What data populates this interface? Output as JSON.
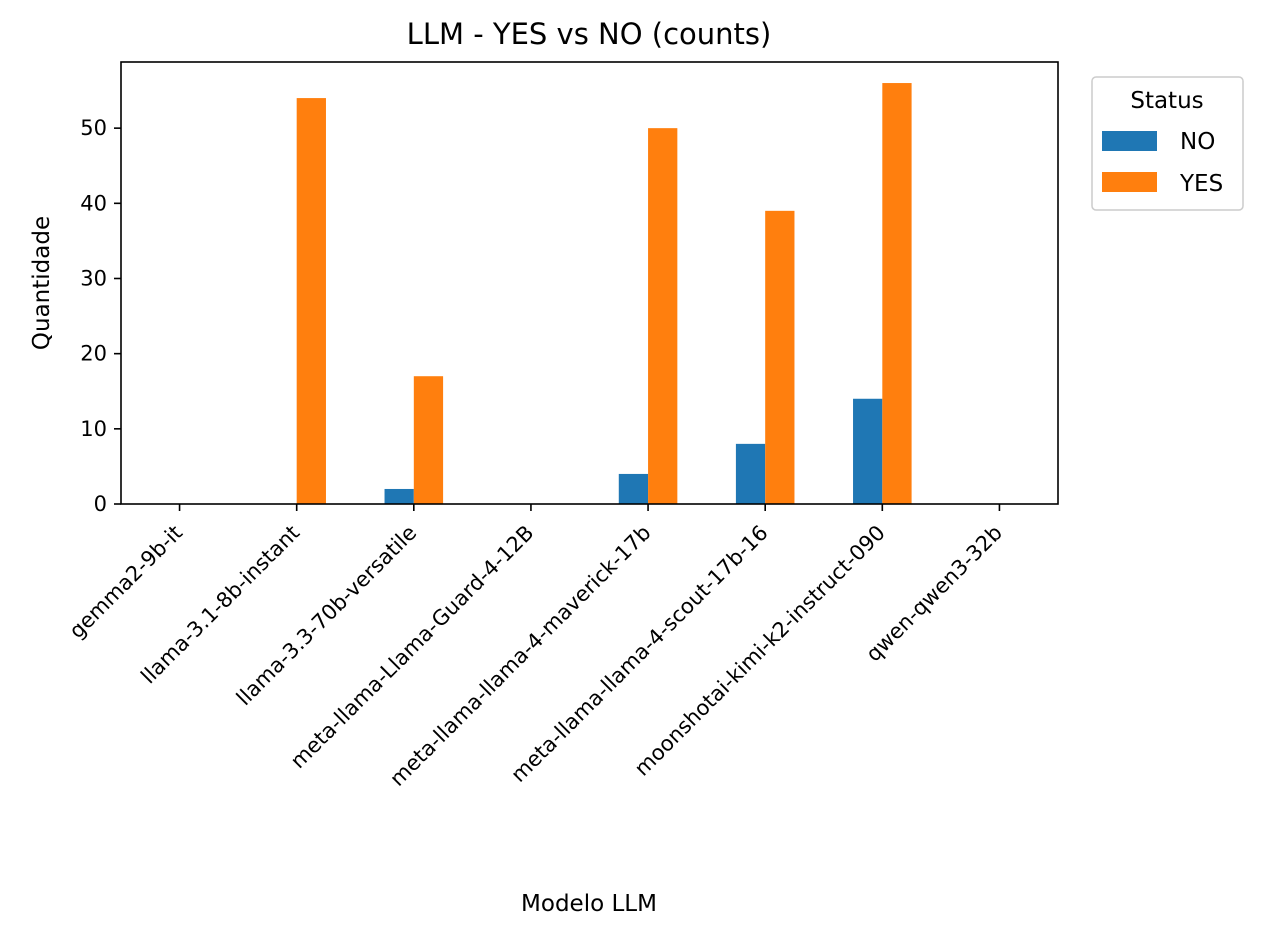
{
  "chart_data": {
    "type": "bar",
    "title": "LLM - YES vs NO (counts)",
    "xlabel": "Modelo LLM",
    "ylabel": "Quantidade",
    "categories": [
      "gemma2-9b-it",
      "llama-3.1-8b-instant",
      "llama-3.3-70b-versatile",
      "meta-llama-Llama-Guard-4-12B",
      "meta-llama-llama-4-maverick-17b",
      "meta-llama-llama-4-scout-17b-16",
      "moonshotai-kimi-k2-instruct-090",
      "qwen-qwen3-32b"
    ],
    "series": [
      {
        "name": "NO",
        "color": "#1f77b4",
        "values": [
          0,
          0,
          2,
          0,
          4,
          8,
          14,
          0
        ]
      },
      {
        "name": "YES",
        "color": "#ff7f0e",
        "values": [
          0,
          54,
          17,
          0,
          50,
          39,
          56,
          0
        ]
      }
    ],
    "ylim": [
      0,
      58.8
    ],
    "yticks": [
      0,
      10,
      20,
      30,
      40,
      50
    ],
    "grid": false,
    "legend": {
      "title": "Status",
      "placement": "outside-top-right"
    }
  }
}
